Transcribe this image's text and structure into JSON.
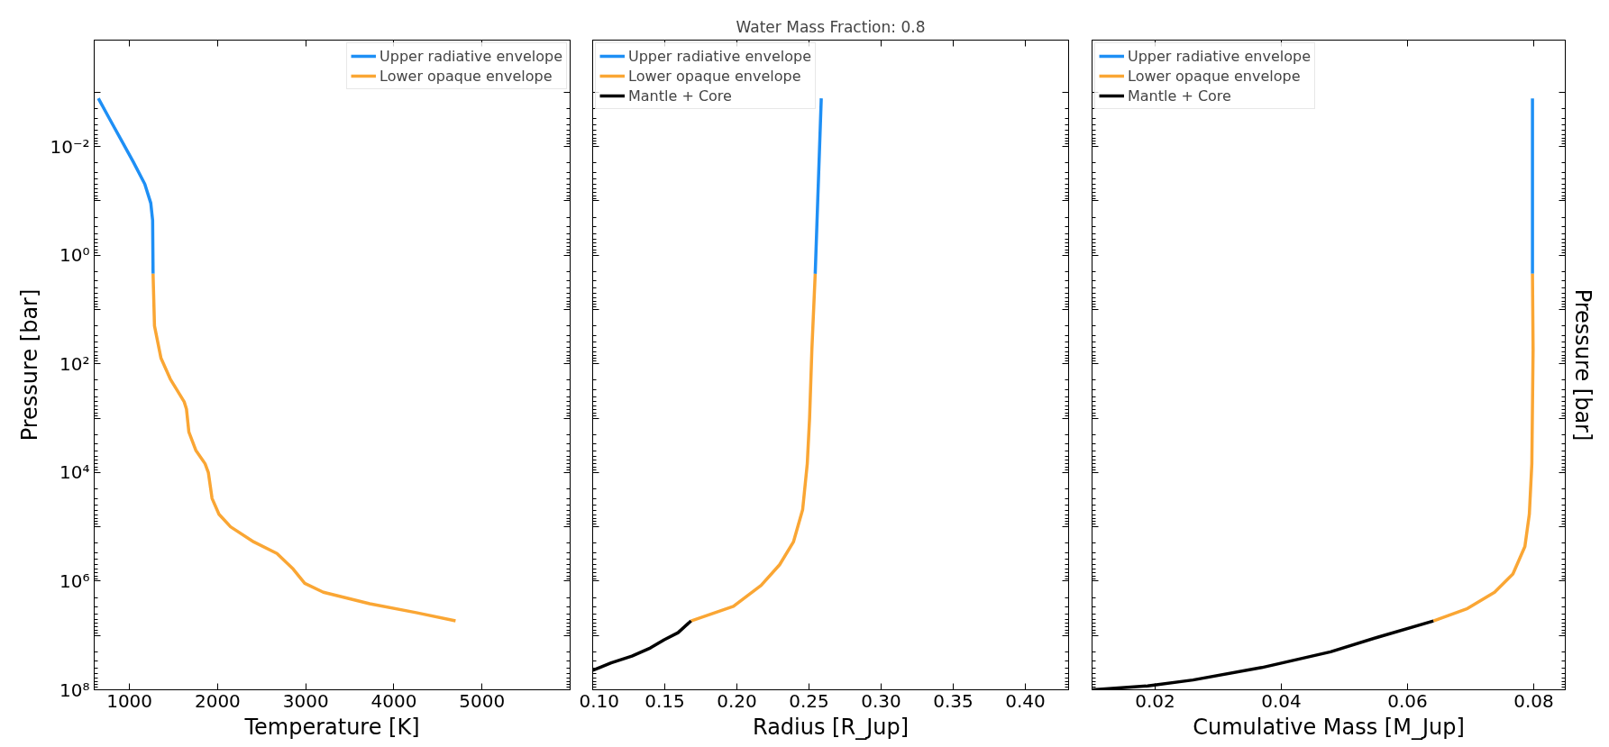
{
  "chart_data": [
    {
      "type": "line",
      "xlabel": "Temperature [K]",
      "ylabel": "Pressure [bar]",
      "log": "y",
      "grid": false,
      "legend": "top right",
      "line_style": "solid",
      "marker": "none",
      "xlim": [
        600,
        6000
      ],
      "xticks": [
        1000,
        2000,
        3000,
        4000,
        5000
      ],
      "ylim": [
        100000000.0,
        0.00011
      ],
      "yticks": [
        {
          "value": 0.001,
          "label": null
        },
        {
          "value": 0.01,
          "label": "10⁻²"
        },
        {
          "value": 0.1,
          "label": null
        },
        {
          "value": 1,
          "label": "10⁰"
        },
        {
          "value": 10,
          "label": null
        },
        {
          "value": 100,
          "label": "10²"
        },
        {
          "value": 1000.0,
          "label": null
        },
        {
          "value": 10000.0,
          "label": "10⁴"
        },
        {
          "value": 100000.0,
          "label": null
        },
        {
          "value": 1000000.0,
          "label": "10⁶"
        },
        {
          "value": 10000000.0,
          "label": null
        },
        {
          "value": 100000000.0,
          "label": "10⁸"
        }
      ],
      "series": [
        {
          "name": "Upper radiative envelope",
          "color": "#1e8ff5",
          "x": [
            647,
            779,
            911,
            1042,
            1174,
            1242,
            1263,
            1268
          ],
          "values": [
            0.0013,
            0.0032,
            0.0078,
            0.019,
            0.049,
            0.11,
            0.23,
            2.2
          ]
        },
        {
          "name": "Lower opaque envelope",
          "color": "#faa634",
          "x": [
            1268,
            1284,
            1358,
            1463,
            1621,
            1647,
            1674,
            1753,
            1858,
            1895,
            1937,
            2016,
            2147,
            2411,
            2674,
            2858,
            2989,
            3200,
            3726,
            4253,
            4700
          ],
          "values": [
            2.2,
            20,
            79,
            190,
            500,
            680,
            1800,
            3900,
            6900,
            10000.0,
            30000.0,
            59000.0,
            100000.0,
            190000.0,
            310000.0,
            600000.0,
            1100000.0,
            1600000.0,
            2600000.0,
            3800000.0,
            5400000.0
          ]
        }
      ]
    },
    {
      "type": "line",
      "title": "Water Mass Fraction: 0.8",
      "xlabel": "Radius [R_Jup]",
      "log": "y",
      "grid": false,
      "legend": "top left",
      "line_style": "solid",
      "marker": "none",
      "tick_labels": "x",
      "xlim": [
        0.1,
        0.43
      ],
      "xticks": [
        {
          "value": 0.1,
          "label": "0.10"
        },
        0.15,
        {
          "value": 0.2,
          "label": "0.20"
        },
        0.25,
        {
          "value": 0.3,
          "label": "0.30"
        },
        0.35,
        {
          "value": 0.4,
          "label": "0.40"
        }
      ],
      "ylim": [
        100000000.0,
        0.00011
      ],
      "yticks": [
        {
          "value": 0.001,
          "label": null
        },
        {
          "value": 0.01,
          "label": null
        },
        {
          "value": 0.1,
          "label": null
        },
        {
          "value": 1,
          "label": null
        },
        {
          "value": 10,
          "label": null
        },
        {
          "value": 100,
          "label": null
        },
        {
          "value": 1000.0,
          "label": null
        },
        {
          "value": 10000.0,
          "label": null
        },
        {
          "value": 100000.0,
          "label": null
        },
        {
          "value": 1000000.0,
          "label": null
        },
        {
          "value": 10000000.0,
          "label": null
        },
        {
          "value": 100000000.0,
          "label": null
        }
      ],
      "series": [
        {
          "name": "Upper radiative envelope",
          "color": "#1e8ff5",
          "x": [
            0.2585,
            0.2569,
            0.2543
          ],
          "values": [
            0.0013,
            0.022,
            2.2
          ]
        },
        {
          "name": "Lower opaque envelope",
          "color": "#faa634",
          "x": [
            0.2543,
            0.252,
            0.2504,
            0.2488,
            0.2456,
            0.2392,
            0.2296,
            0.2168,
            0.1976,
            0.1682
          ],
          "values": [
            2.2,
            54,
            1000,
            6900,
            48000.0,
            190000.0,
            500000.0,
            1200000.0,
            2900000.0,
            5400000.0
          ]
        },
        {
          "name": "Mantle + Core",
          "color": "#000000",
          "x": [
            0.1682,
            0.1592,
            0.1496,
            0.14,
            0.1272,
            0.1128,
            0.1048,
            0.1
          ],
          "values": [
            5400000.0,
            8900000.0,
            12000000.0,
            17000000.0,
            24000000.0,
            32000000.0,
            39000000.0,
            44000000.0
          ]
        }
      ]
    },
    {
      "type": "line",
      "xlabel": "Cumulative Mass [M_Jup]",
      "y2label": "Pressure [bar]",
      "log": "y",
      "grid": false,
      "legend": "top left",
      "line_style": "solid",
      "marker": "none",
      "tick_labels": "x",
      "xlim": [
        0.01,
        0.085
      ],
      "xticks": [
        0.02,
        0.04,
        0.06,
        0.08
      ],
      "ylim": [
        100000000.0,
        0.00011
      ],
      "yticks": [
        {
          "value": 0.001,
          "label": null
        },
        {
          "value": 0.01,
          "label": null
        },
        {
          "value": 0.1,
          "label": null
        },
        {
          "value": 1,
          "label": null
        },
        {
          "value": 10,
          "label": null
        },
        {
          "value": 100,
          "label": null
        },
        {
          "value": 1000.0,
          "label": null
        },
        {
          "value": 10000.0,
          "label": null
        },
        {
          "value": 100000.0,
          "label": null
        },
        {
          "value": 1000000.0,
          "label": null
        },
        {
          "value": 10000000.0,
          "label": null
        },
        {
          "value": 100000000.0,
          "label": null
        }
      ],
      "series": [
        {
          "name": "Upper radiative envelope",
          "color": "#1e8ff5",
          "x": [
            0.0798,
            0.0798
          ],
          "values": [
            0.0013,
            2.2
          ]
        },
        {
          "name": "Lower opaque envelope",
          "color": "#faa634",
          "x": [
            0.0798,
            0.0799,
            0.0797,
            0.0793,
            0.0786,
            0.0767,
            0.0738,
            0.0695,
            0.0641
          ],
          "values": [
            2.2,
            54,
            6900,
            59000.0,
            230000.0,
            740000.0,
            1600000.0,
            3200000.0,
            5400000.0
          ]
        },
        {
          "name": "Mantle + Core",
          "color": "#000000",
          "x": [
            0.0641,
            0.055,
            0.0478,
            0.0369,
            0.026,
            0.0188,
            0.0101
          ],
          "values": [
            5400000.0,
            11000000.0,
            20000000.0,
            39000000.0,
            66000000.0,
            85000000.0,
            100000000.0
          ]
        }
      ]
    }
  ]
}
